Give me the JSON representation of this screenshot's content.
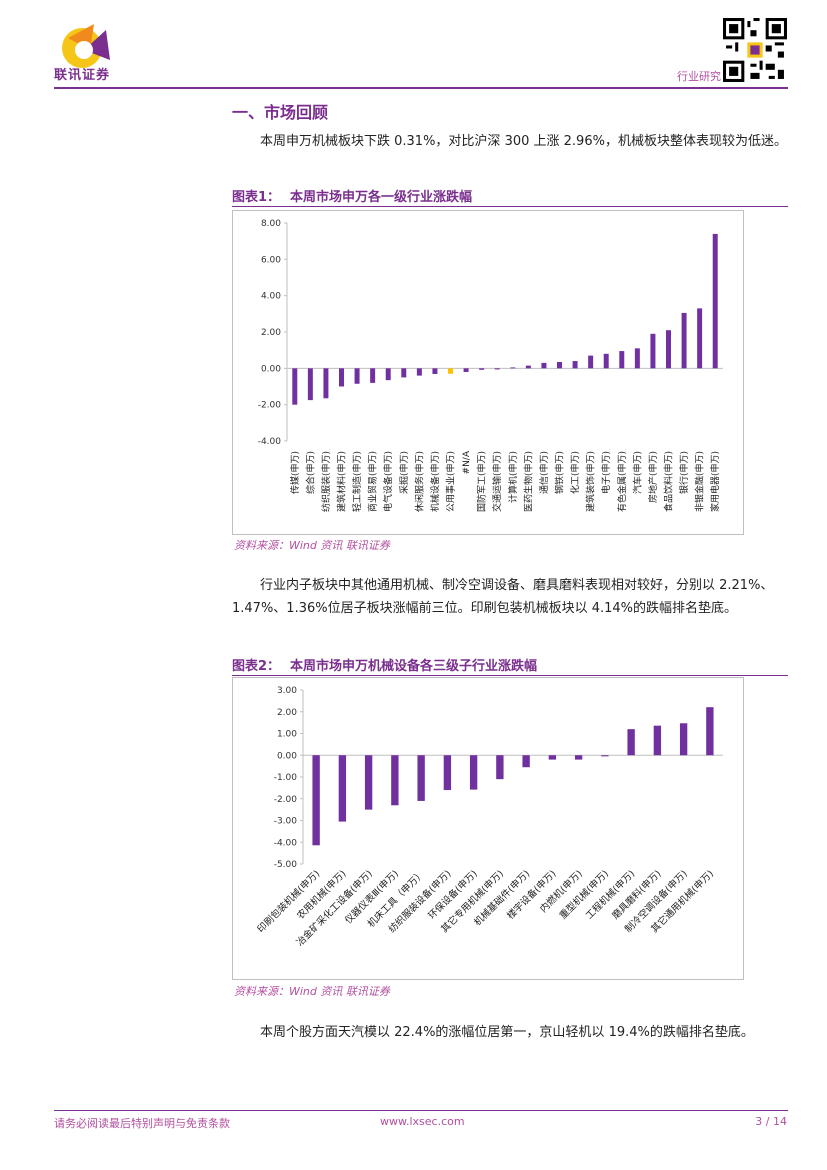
{
  "header": {
    "logo_text": "联讯证券",
    "label": "行业研究"
  },
  "section": {
    "title": "一、市场回顾"
  },
  "paragraphs": {
    "p1": "本周申万机械板块下跌 0.31%，对比沪深 300 上涨 2.96%，机械板块整体表现较为低迷。",
    "p2": "行业内子板块中其他通用机械、制冷空调设备、磨具磨料表现相对较好，分别以 2.21%、1.47%、1.36%位居子板块涨幅前三位。印刷包装机械板块以 4.14%的跌幅排名垫底。",
    "p3": "本周个股方面天汽模以 22.4%的涨幅位居第一，京山轻机以 19.4%的跌幅排名垫底。"
  },
  "figures": {
    "fig1": {
      "number": "图表1：",
      "title": "本周市场申万各一级行业涨跌幅",
      "source": "资料来源：Wind 资讯   联讯证券"
    },
    "fig2": {
      "number": "图表2：",
      "title": "本周市场申万机械设备各三级子行业涨跌幅",
      "source": "资料来源：Wind 资讯   联讯证券"
    }
  },
  "footer": {
    "left": "请务必阅读最后特别声明与免责条款",
    "center": "www.lxsec.com",
    "right": "3 / 14"
  },
  "colors": {
    "brand": "#7a2f8e",
    "bar": "#7030a0",
    "highlight": "#ffc000",
    "accent_text": "#b24fa0"
  },
  "chart_data": [
    {
      "type": "bar",
      "ylim": [
        -4,
        8
      ],
      "yticks": [
        "8.00",
        "6.00",
        "4.00",
        "2.00",
        "0.00",
        "-2.00",
        "-4.00"
      ],
      "highlight_index": 10,
      "categories": [
        "传媒(申万)",
        "综合(申万)",
        "纺织服装(申万)",
        "建筑材料(申万)",
        "轻工制造(申万)",
        "商业贸易(申万)",
        "电气设备(申万)",
        "采掘(申万)",
        "休闲服务(申万)",
        "机械设备(申万)",
        "公用事业(申万)",
        "#N/A",
        "国防军工(申万)",
        "交通运输(申万)",
        "计算机(申万)",
        "医药生物(申万)",
        "通信(申万)",
        "钢铁(申万)",
        "化工(申万)",
        "建筑装饰(申万)",
        "电子(申万)",
        "有色金属(申万)",
        "汽车(申万)",
        "房地产(申万)",
        "食品饮料(申万)",
        "银行(申万)",
        "非银金融(申万)",
        "家用电器(申万)"
      ],
      "values": [
        -2.0,
        -1.75,
        -1.65,
        -1.0,
        -0.85,
        -0.8,
        -0.65,
        -0.5,
        -0.4,
        -0.31,
        -0.3,
        -0.2,
        -0.08,
        -0.06,
        0.05,
        0.15,
        0.3,
        0.35,
        0.4,
        0.7,
        0.8,
        0.95,
        1.1,
        1.9,
        2.1,
        3.05,
        3.3,
        7.4
      ]
    },
    {
      "type": "bar",
      "ylim": [
        -5,
        3
      ],
      "yticks": [
        "3.00",
        "2.00",
        "1.00",
        "0.00",
        "-1.00",
        "-2.00",
        "-3.00",
        "-4.00",
        "-5.00"
      ],
      "categories": [
        "印刷包装机械(申万)",
        "农用机械(申万)",
        "冶金矿采化工设备(申万)",
        "仪器仪表Ⅲ(申万)",
        "机床工具（申万）",
        "纺织服装设备(申万)",
        "环保设备(申万)",
        "其它专用机械(申万)",
        "机械基础件(申万)",
        "楼宇设备(申万)",
        "内燃机(申万)",
        "重型机械(申万)",
        "工程机械(申万)",
        "磨具磨料(申万)",
        "制冷空调设备(申万)",
        "其它通用机械(申万)"
      ],
      "values": [
        -4.14,
        -3.05,
        -2.5,
        -2.3,
        -2.1,
        -1.6,
        -1.58,
        -1.1,
        -0.55,
        -0.2,
        -0.2,
        -0.05,
        1.2,
        1.36,
        1.47,
        2.21
      ]
    }
  ]
}
